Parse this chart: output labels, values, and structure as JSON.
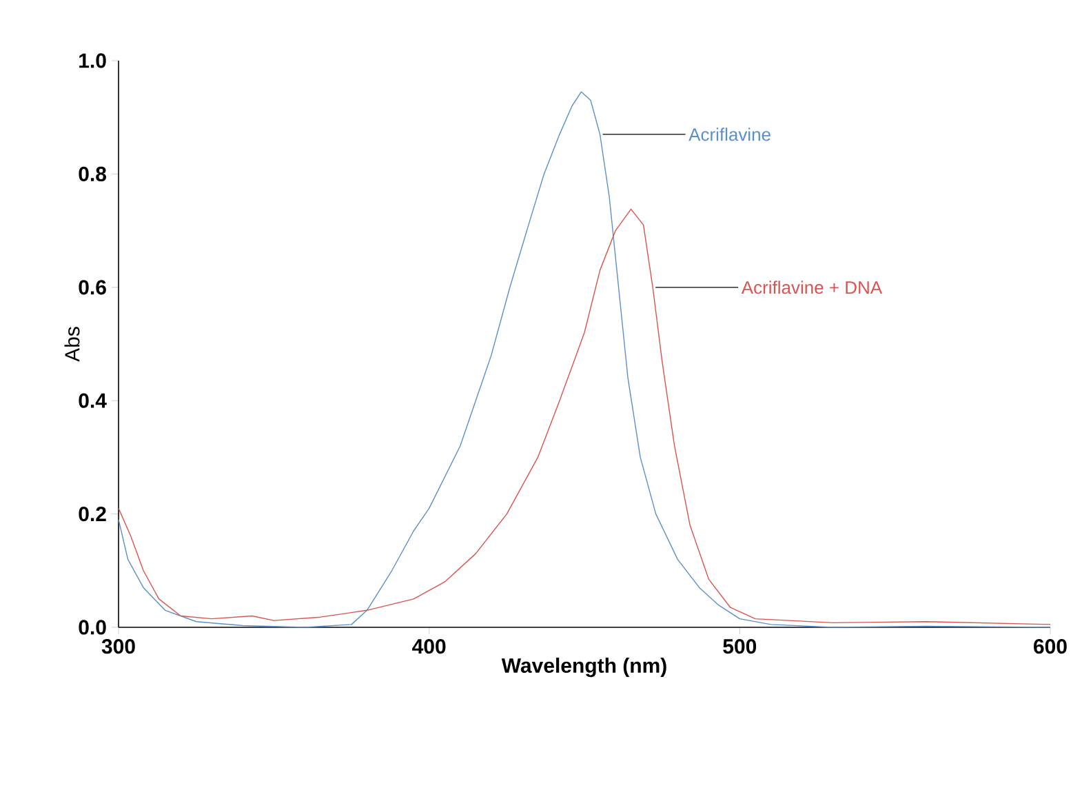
{
  "chart_data": {
    "type": "line",
    "xlabel": "Wavelength (nm)",
    "ylabel": "Abs",
    "xlim": [
      300,
      600
    ],
    "xticks": [
      300,
      400,
      500,
      600
    ],
    "ylim": [
      0,
      1
    ],
    "yticks": [
      {
        "value": 0,
        "label": "0.0"
      },
      {
        "value": 0.2,
        "label": "0.2"
      },
      {
        "value": 0.4,
        "label": "0.4"
      },
      {
        "value": 0.6,
        "label": "0.6"
      },
      {
        "value": 0.8,
        "label": "0.8"
      },
      {
        "value": 1,
        "label": "1.0"
      }
    ],
    "grid": false,
    "legend": false,
    "marker": "none",
    "line_style": "solid",
    "series": [
      {
        "name": "Acriflavine",
        "color": "#5b8fc9",
        "x": [
          300,
          303,
          308,
          315,
          325,
          340,
          360,
          375,
          380,
          388,
          395,
          400,
          410,
          420,
          426,
          432,
          437,
          442,
          446,
          449,
          452,
          455,
          458,
          461,
          464,
          468,
          473,
          480,
          487,
          493,
          500,
          510,
          530,
          560,
          600
        ],
        "values": [
          0.19,
          0.12,
          0.07,
          0.03,
          0.01,
          0.003,
          0.0,
          0.005,
          0.03,
          0.1,
          0.17,
          0.21,
          0.32,
          0.48,
          0.6,
          0.71,
          0.8,
          0.87,
          0.92,
          0.945,
          0.93,
          0.87,
          0.76,
          0.6,
          0.44,
          0.3,
          0.2,
          0.12,
          0.07,
          0.04,
          0.015,
          0.005,
          0.0,
          0.002,
          0.0
        ]
      },
      {
        "name": "Acriflavine + DNA",
        "color": "#d9534f",
        "x": [
          300,
          304,
          308,
          313,
          320,
          330,
          343,
          350,
          365,
          380,
          395,
          405,
          415,
          425,
          435,
          442,
          450,
          455,
          460,
          465,
          469,
          472,
          475,
          479,
          484,
          490,
          497,
          505,
          530,
          560,
          600
        ],
        "values": [
          0.21,
          0.16,
          0.1,
          0.05,
          0.02,
          0.015,
          0.02,
          0.012,
          0.018,
          0.03,
          0.05,
          0.08,
          0.13,
          0.2,
          0.3,
          0.4,
          0.52,
          0.63,
          0.7,
          0.738,
          0.71,
          0.6,
          0.47,
          0.32,
          0.18,
          0.085,
          0.035,
          0.015,
          0.008,
          0.01,
          0.005
        ]
      }
    ]
  }
}
